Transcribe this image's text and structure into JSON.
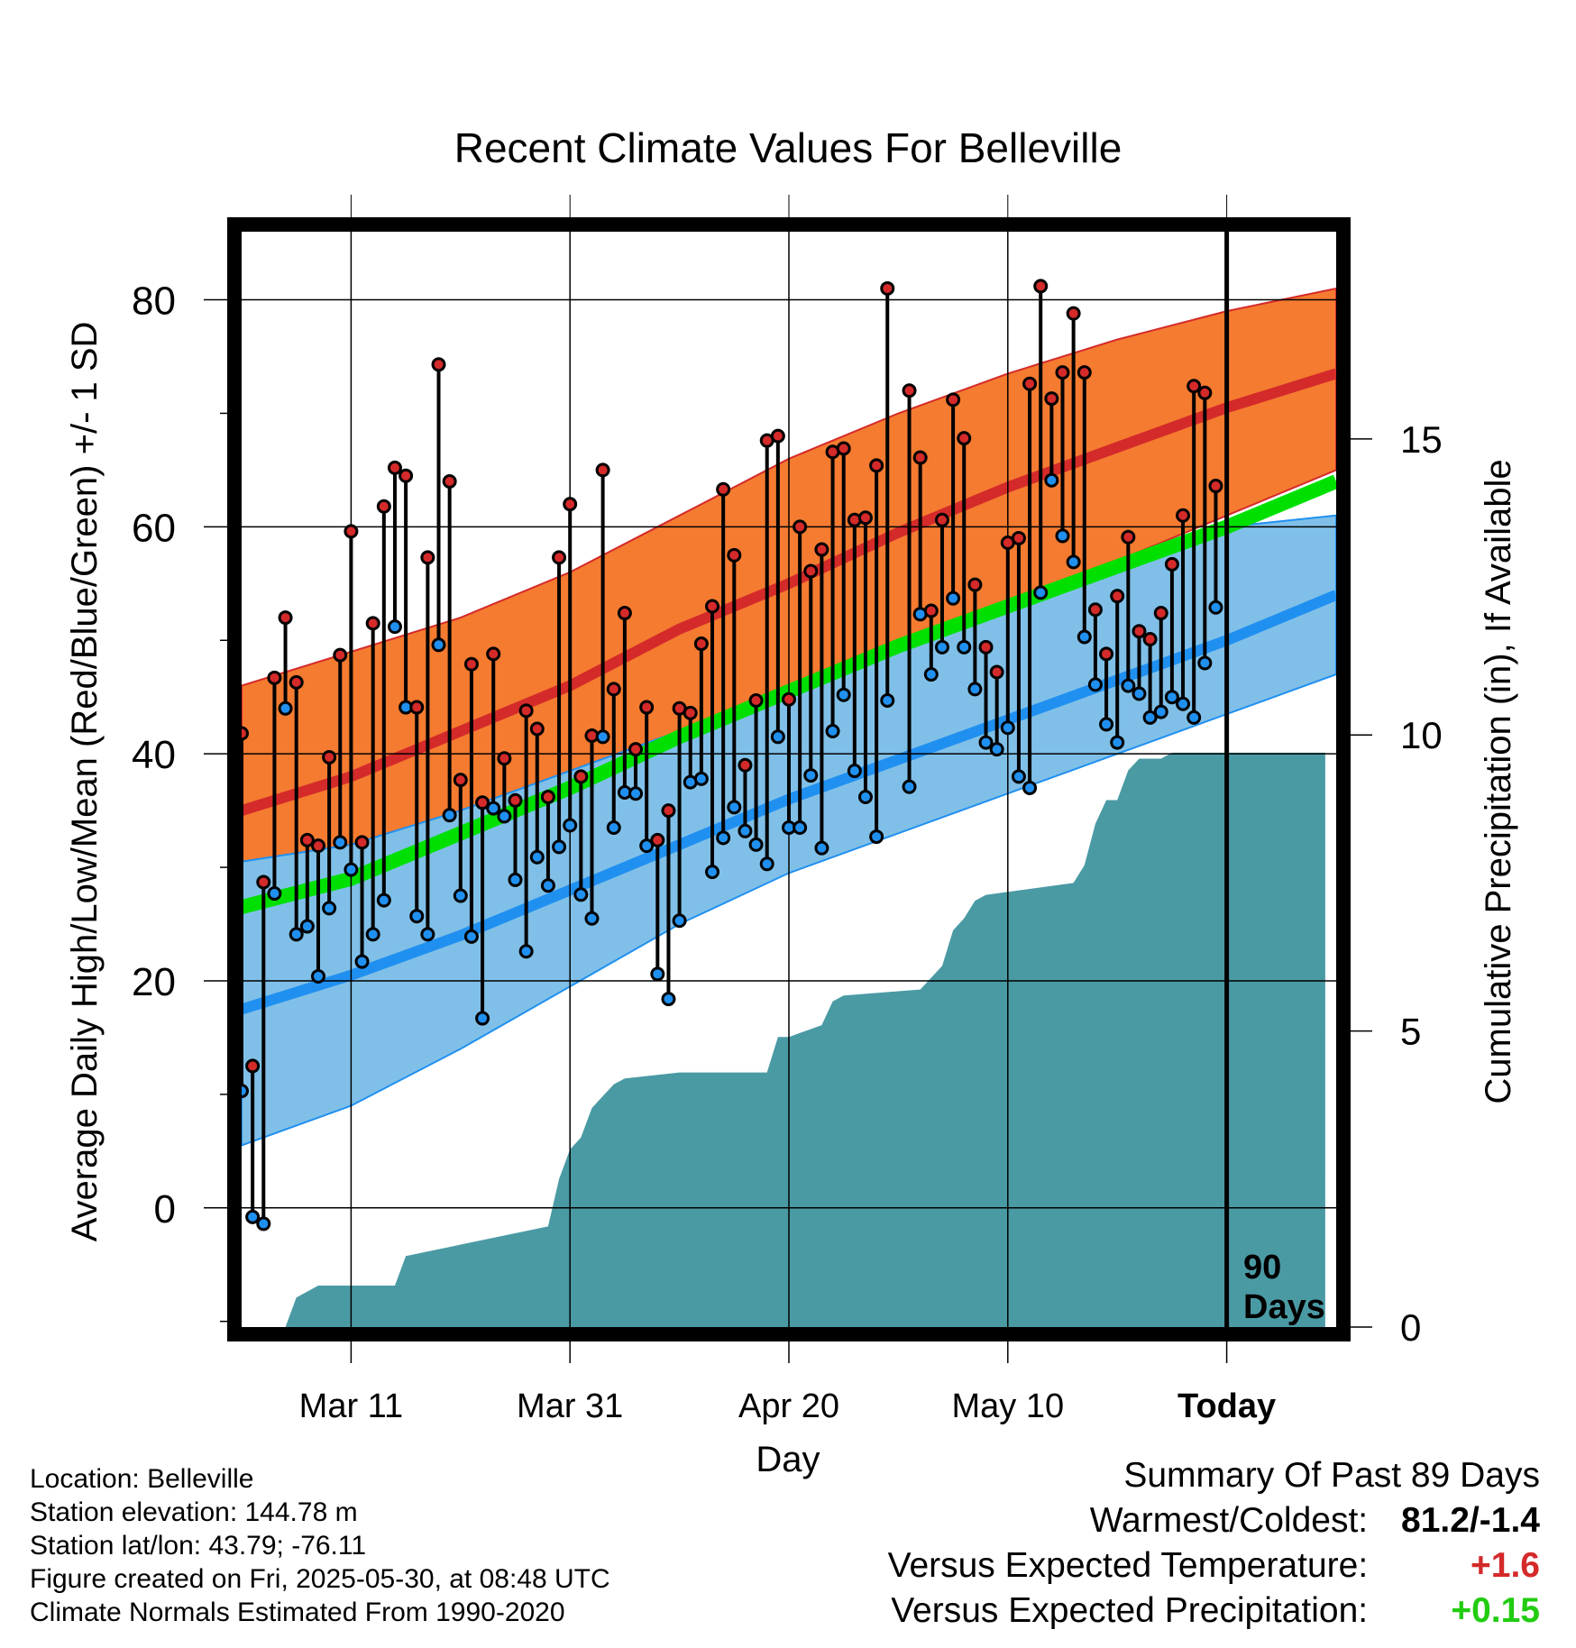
{
  "title": "Recent Climate Values For Belleville",
  "y_label": "Average Daily High/Low/Mean (Red/Blue/Green) +/- 1 SD",
  "y2_label": "Cumulative Precipitation (in), If Available",
  "x_label": "Day",
  "today_annotation": [
    "90",
    "Days"
  ],
  "info": {
    "location": "Location: Belleville",
    "elevation": "Station elevation: 144.78 m",
    "latlon": "Station lat/lon: 43.79; -76.11",
    "created": "Figure created on Fri, 2025-05-30, at 08:48 UTC",
    "normals": "Climate Normals Estimated From 1990-2020"
  },
  "summary": {
    "heading": "Summary Of Past 89 Days",
    "warm_cold_label": "Warmest/Coldest:",
    "warm_cold_value": "81.2/-1.4",
    "temp_label": "Versus Expected Temperature:",
    "temp_value": "+1.6",
    "precip_label": "Versus Expected Precipitation:",
    "precip_value": "+0.15"
  },
  "colors": {
    "high_band": "#f47b30",
    "high_line": "#d42a2a",
    "low_band": "#80c0e8",
    "low_line": "#2090f0",
    "mean_line": "#00e000",
    "overlap": "#9b1616",
    "precip": "#4a9aa4",
    "high_dot": "#d42a2a",
    "low_dot": "#2090f0"
  },
  "chart_data": {
    "type": "line",
    "x_range_days": [
      0,
      100
    ],
    "x_ticks": [
      {
        "day": 10,
        "label": "Mar 11"
      },
      {
        "day": 30,
        "label": "Mar 31"
      },
      {
        "day": 50,
        "label": "Apr 20"
      },
      {
        "day": 70,
        "label": "May 10"
      },
      {
        "day": 90,
        "label": "Today"
      }
    ],
    "today_day": 90,
    "y_range": [
      -10.5,
      86
    ],
    "y_ticks": [
      0,
      20,
      40,
      60,
      80
    ],
    "y2_range": [
      0,
      18.5
    ],
    "y2_ticks": [
      0,
      5,
      10,
      15
    ],
    "normals": {
      "x": [
        0,
        10,
        20,
        30,
        40,
        50,
        60,
        70,
        80,
        90,
        100
      ],
      "high_mean": [
        35,
        38,
        42,
        46,
        51,
        55,
        59.5,
        63.5,
        67,
        70.5,
        73.5
      ],
      "high_sd_upper": [
        46,
        49,
        52,
        56,
        61,
        66,
        70,
        73.5,
        76.5,
        79,
        81
      ],
      "high_sd_lower": [
        24.5,
        27,
        31,
        35,
        40,
        44.5,
        49,
        53,
        57,
        61,
        65
      ],
      "low_mean": [
        17.5,
        20.5,
        24,
        28,
        32,
        36,
        39.5,
        43,
        46.5,
        50,
        54
      ],
      "low_sd_upper": [
        30.5,
        32,
        35,
        38.5,
        42,
        46,
        50,
        53.5,
        57,
        60,
        61
      ],
      "low_sd_lower": [
        5.5,
        9,
        14,
        19.5,
        25,
        29.5,
        33,
        36.5,
        40,
        43.5,
        47
      ],
      "mean": [
        26.5,
        29,
        33,
        37,
        41.5,
        45.5,
        49.5,
        53,
        56.5,
        60,
        64
      ]
    },
    "daily": [
      {
        "day": 0,
        "high": 41.8,
        "low": 10.3
      },
      {
        "day": 1,
        "high": 12.5,
        "low": -0.8
      },
      {
        "day": 2,
        "high": 28.7,
        "low": -1.4
      },
      {
        "day": 3,
        "high": 46.7,
        "low": 27.7
      },
      {
        "day": 4,
        "high": 52.0,
        "low": 44.0
      },
      {
        "day": 5,
        "high": 46.3,
        "low": 24.1
      },
      {
        "day": 6,
        "high": 32.4,
        "low": 24.8
      },
      {
        "day": 7,
        "high": 31.9,
        "low": 20.4
      },
      {
        "day": 8,
        "high": 39.7,
        "low": 26.4
      },
      {
        "day": 9,
        "high": 48.7,
        "low": 32.2
      },
      {
        "day": 10,
        "high": 59.6,
        "low": 29.8
      },
      {
        "day": 11,
        "high": 32.2,
        "low": 21.7
      },
      {
        "day": 12,
        "high": 51.5,
        "low": 24.1
      },
      {
        "day": 13,
        "high": 61.8,
        "low": 27.1
      },
      {
        "day": 14,
        "high": 65.2,
        "low": 51.2
      },
      {
        "day": 15,
        "high": 64.5,
        "low": 44.1
      },
      {
        "day": 16,
        "high": 44.1,
        "low": 25.7
      },
      {
        "day": 17,
        "high": 57.3,
        "low": 24.1
      },
      {
        "day": 18,
        "high": 74.3,
        "low": 49.6
      },
      {
        "day": 19,
        "high": 64.0,
        "low": 34.6
      },
      {
        "day": 20,
        "high": 37.7,
        "low": 27.5
      },
      {
        "day": 21,
        "high": 47.9,
        "low": 23.9
      },
      {
        "day": 22,
        "high": 35.7,
        "low": 16.7
      },
      {
        "day": 23,
        "high": 48.8,
        "low": 35.2
      },
      {
        "day": 24,
        "high": 39.6,
        "low": 34.5
      },
      {
        "day": 25,
        "high": 35.9,
        "low": 28.9
      },
      {
        "day": 26,
        "high": 43.8,
        "low": 22.6
      },
      {
        "day": 27,
        "high": 42.2,
        "low": 30.9
      },
      {
        "day": 28,
        "high": 36.2,
        "low": 28.4
      },
      {
        "day": 29,
        "high": 57.3,
        "low": 31.8
      },
      {
        "day": 30,
        "high": 62.0,
        "low": 33.7
      },
      {
        "day": 31,
        "high": 38.0,
        "low": 27.6
      },
      {
        "day": 32,
        "high": 41.6,
        "low": 25.5
      },
      {
        "day": 33,
        "high": 65.0,
        "low": 41.5
      },
      {
        "day": 34,
        "high": 45.7,
        "low": 33.5
      },
      {
        "day": 35,
        "high": 52.4,
        "low": 36.6
      },
      {
        "day": 36,
        "high": 40.4,
        "low": 36.5
      },
      {
        "day": 37,
        "high": 44.1,
        "low": 31.9
      },
      {
        "day": 38,
        "high": 32.4,
        "low": 20.6
      },
      {
        "day": 39,
        "high": 35.0,
        "low": 18.4
      },
      {
        "day": 40,
        "high": 44.0,
        "low": 25.3
      },
      {
        "day": 41,
        "high": 43.6,
        "low": 37.5
      },
      {
        "day": 42,
        "high": 49.7,
        "low": 37.8
      },
      {
        "day": 43,
        "high": 53.0,
        "low": 29.6
      },
      {
        "day": 44,
        "high": 63.3,
        "low": 32.6
      },
      {
        "day": 45,
        "high": 57.5,
        "low": 35.3
      },
      {
        "day": 46,
        "high": 39.0,
        "low": 33.2
      },
      {
        "day": 47,
        "high": 44.7,
        "low": 32.0
      },
      {
        "day": 48,
        "high": 67.6,
        "low": 30.3
      },
      {
        "day": 49,
        "high": 68.0,
        "low": 41.5
      },
      {
        "day": 50,
        "high": 44.8,
        "low": 33.5
      },
      {
        "day": 51,
        "high": 60.0,
        "low": 33.5
      },
      {
        "day": 52,
        "high": 56.1,
        "low": 38.1
      },
      {
        "day": 53,
        "high": 58.0,
        "low": 31.7
      },
      {
        "day": 54,
        "high": 66.6,
        "low": 42.0
      },
      {
        "day": 55,
        "high": 66.9,
        "low": 45.2
      },
      {
        "day": 56,
        "high": 60.6,
        "low": 38.5
      },
      {
        "day": 57,
        "high": 60.8,
        "low": 36.2
      },
      {
        "day": 58,
        "high": 65.4,
        "low": 32.7
      },
      {
        "day": 59,
        "high": 81.0,
        "low": 44.7
      },
      {
        "day": 61,
        "high": 72.0,
        "low": 37.1
      },
      {
        "day": 62,
        "high": 66.1,
        "low": 52.3
      },
      {
        "day": 63,
        "high": 52.6,
        "low": 47.0
      },
      {
        "day": 64,
        "high": 60.6,
        "low": 49.4
      },
      {
        "day": 65,
        "high": 71.2,
        "low": 53.7
      },
      {
        "day": 66,
        "high": 67.8,
        "low": 49.4
      },
      {
        "day": 67,
        "high": 54.9,
        "low": 45.7
      },
      {
        "day": 68,
        "high": 49.4,
        "low": 41.0
      },
      {
        "day": 69,
        "high": 47.2,
        "low": 40.4
      },
      {
        "day": 70,
        "high": 58.6,
        "low": 42.3
      },
      {
        "day": 71,
        "high": 59.0,
        "low": 38.0
      },
      {
        "day": 72,
        "high": 72.6,
        "low": 37.0
      },
      {
        "day": 73,
        "high": 81.2,
        "low": 54.2
      },
      {
        "day": 74,
        "high": 71.3,
        "low": 64.1
      },
      {
        "day": 75,
        "high": 73.6,
        "low": 59.2
      },
      {
        "day": 76,
        "high": 78.8,
        "low": 56.9
      },
      {
        "day": 77,
        "high": 73.6,
        "low": 50.3
      },
      {
        "day": 78,
        "high": 52.7,
        "low": 46.1
      },
      {
        "day": 79,
        "high": 48.8,
        "low": 42.6
      },
      {
        "day": 80,
        "high": 53.9,
        "low": 41.0
      },
      {
        "day": 81,
        "high": 59.1,
        "low": 46.0
      },
      {
        "day": 82,
        "high": 50.8,
        "low": 45.3
      },
      {
        "day": 83,
        "high": 50.1,
        "low": 43.2
      },
      {
        "day": 84,
        "high": 52.4,
        "low": 43.7
      },
      {
        "day": 85,
        "high": 56.7,
        "low": 45.0
      },
      {
        "day": 86,
        "high": 61.0,
        "low": 44.4
      },
      {
        "day": 87,
        "high": 72.4,
        "low": 43.2
      },
      {
        "day": 88,
        "high": 71.8,
        "low": 48.0
      },
      {
        "day": 89,
        "high": 63.6,
        "low": 52.9
      }
    ],
    "precip_cumulative": {
      "x": [
        0,
        4,
        5,
        6,
        7,
        14,
        15,
        28,
        29,
        30,
        31,
        32,
        33,
        34,
        35,
        40,
        48,
        49,
        50,
        53,
        54,
        55,
        62,
        64,
        65,
        66,
        67,
        68,
        76,
        77,
        78,
        79,
        80,
        81,
        82,
        84,
        85,
        91,
        99
      ],
      "y": [
        0,
        0,
        0.5,
        0.6,
        0.7,
        0.7,
        1.2,
        1.7,
        2.5,
        3.0,
        3.2,
        3.7,
        3.9,
        4.1,
        4.2,
        4.3,
        4.3,
        4.9,
        4.9,
        5.1,
        5.5,
        5.6,
        5.7,
        6.1,
        6.7,
        6.9,
        7.2,
        7.3,
        7.5,
        7.8,
        8.5,
        8.9,
        8.9,
        9.4,
        9.6,
        9.6,
        9.7,
        9.7,
        9.7
      ]
    }
  }
}
